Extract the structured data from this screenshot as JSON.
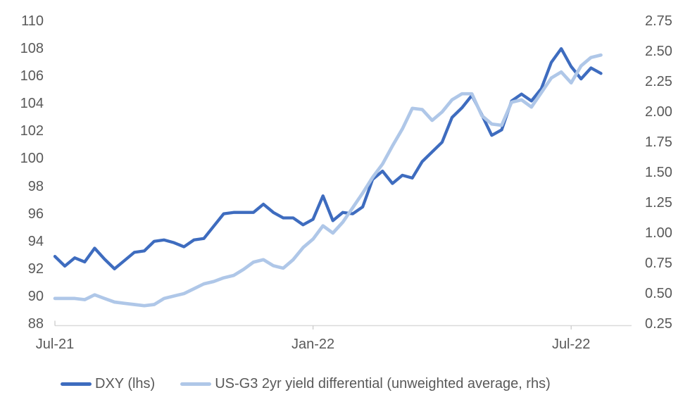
{
  "chart_data": {
    "type": "line",
    "title": "",
    "grid": "off",
    "legend_position": "bottom",
    "left_ylim": [
      88,
      110
    ],
    "right_ylim": [
      0.25,
      2.75
    ],
    "left_ticks": [
      "110",
      "108",
      "106",
      "104",
      "102",
      "100",
      "98",
      "96",
      "94",
      "92",
      "90",
      "88"
    ],
    "right_ticks": [
      "2.75",
      "2.50",
      "2.25",
      "2.00",
      "1.75",
      "1.50",
      "1.25",
      "1.00",
      "0.75",
      "0.50",
      "0.25"
    ],
    "x_ticks": [
      {
        "label": "Jul-21",
        "week": 0
      },
      {
        "label": "Jan-22",
        "week": 26
      },
      {
        "label": "Jul-22",
        "week": 52
      }
    ],
    "series": [
      {
        "name": "DXY (lhs)",
        "axis": "left",
        "color": "#3E6CBF",
        "values": [
          92.9,
          92.2,
          92.8,
          92.5,
          93.5,
          92.7,
          92.0,
          92.6,
          93.2,
          93.3,
          94.0,
          94.1,
          93.9,
          93.6,
          94.1,
          94.2,
          95.1,
          96.0,
          96.1,
          96.1,
          96.1,
          96.7,
          96.1,
          95.7,
          95.7,
          95.2,
          95.6,
          97.3,
          95.5,
          96.1,
          96.0,
          96.5,
          98.5,
          99.1,
          98.2,
          98.8,
          98.6,
          99.8,
          100.5,
          101.2,
          103.0,
          103.7,
          104.6,
          103.2,
          101.7,
          102.1,
          104.2,
          104.7,
          104.2,
          105.1,
          107.0,
          108.0,
          106.7,
          105.8,
          106.6,
          106.2
        ]
      },
      {
        "name": "US-G3 2yr yield differential (unweighted average, rhs)",
        "axis": "right",
        "color": "#AFC7E8",
        "values": [
          0.46,
          0.46,
          0.46,
          0.45,
          0.49,
          0.46,
          0.43,
          0.42,
          0.41,
          0.4,
          0.41,
          0.46,
          0.48,
          0.5,
          0.54,
          0.58,
          0.6,
          0.63,
          0.65,
          0.7,
          0.76,
          0.78,
          0.73,
          0.71,
          0.78,
          0.88,
          0.95,
          1.06,
          1.0,
          1.09,
          1.21,
          1.33,
          1.46,
          1.57,
          1.72,
          1.86,
          2.03,
          2.02,
          1.93,
          2.0,
          2.1,
          2.15,
          2.15,
          1.97,
          1.9,
          1.89,
          2.08,
          2.1,
          2.04,
          2.16,
          2.28,
          2.33,
          2.24,
          2.38,
          2.45,
          2.47
        ]
      }
    ]
  },
  "colors": {
    "axis_text": "#595959",
    "axis_line": "#D9D9D9",
    "tick_mark": "#C8C8C8",
    "background": "#FFFFFF"
  }
}
